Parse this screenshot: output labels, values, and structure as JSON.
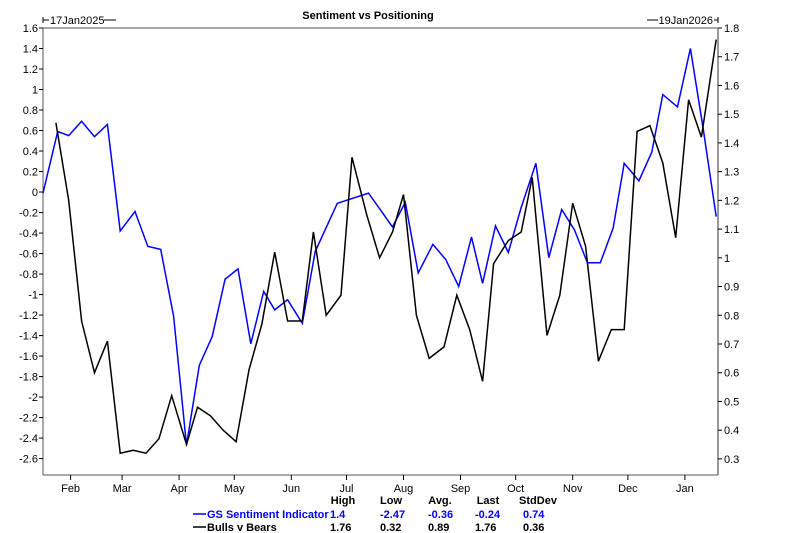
{
  "chart_data": {
    "type": "line",
    "title": "Sentiment vs Positioning",
    "start_label": "17Jan2025",
    "end_label": "19Jan2026",
    "x_unit": "days since 17Jan2025",
    "xlim": [
      0,
      367
    ],
    "month_ticks": [
      {
        "label": "Feb",
        "day": 15
      },
      {
        "label": "Mar",
        "day": 43
      },
      {
        "label": "Apr",
        "day": 74
      },
      {
        "label": "May",
        "day": 104
      },
      {
        "label": "Jun",
        "day": 135
      },
      {
        "label": "Jul",
        "day": 165
      },
      {
        "label": "Aug",
        "day": 196
      },
      {
        "label": "Sep",
        "day": 227
      },
      {
        "label": "Oct",
        "day": 257
      },
      {
        "label": "Nov",
        "day": 288
      },
      {
        "label": "Dec",
        "day": 318
      },
      {
        "label": "Jan",
        "day": 349
      }
    ],
    "left_axis": {
      "ylim": [
        -2.76,
        1.6
      ],
      "ticks": [
        1.6,
        1.4,
        1.2,
        1,
        0.8,
        0.6,
        0.4,
        0.2,
        0,
        -0.2,
        -0.4,
        -0.6,
        -0.8,
        -1,
        -1.2,
        -1.4,
        -1.6,
        -1.8,
        -2,
        -2.2,
        -2.4,
        -2.6
      ]
    },
    "right_axis": {
      "ylim": [
        0.244,
        1.8
      ],
      "ticks": [
        1.8,
        1.7,
        1.6,
        1.5,
        1.4,
        1.3,
        1.2,
        1.1,
        1,
        0.9,
        0.8,
        0.7,
        0.6,
        0.5,
        0.4,
        0.3
      ]
    },
    "series": [
      {
        "name": "GS Sentiment Indicator",
        "color": "#0000ff",
        "axis": "left",
        "x": [
          0,
          8,
          14,
          21,
          28,
          35,
          42,
          50,
          57,
          64,
          71,
          78,
          85,
          92,
          99,
          106,
          113,
          120,
          126,
          133,
          141,
          148,
          160,
          177,
          190,
          197,
          204,
          212,
          219,
          226,
          233,
          239,
          246,
          253,
          260,
          268,
          275,
          282,
          289,
          296,
          303,
          310,
          316,
          324,
          331,
          337,
          345,
          352,
          359,
          366
        ],
        "values": [
          -0.01,
          0.59,
          0.55,
          0.69,
          0.54,
          0.66,
          -0.38,
          -0.19,
          -0.53,
          -0.56,
          -1.21,
          -2.47,
          -1.69,
          -1.41,
          -0.85,
          -0.75,
          -1.48,
          -0.97,
          -1.15,
          -1.05,
          -1.28,
          -0.58,
          -0.11,
          -0.01,
          -0.34,
          -0.1,
          -0.79,
          -0.51,
          -0.66,
          -0.92,
          -0.44,
          -0.89,
          -0.33,
          -0.59,
          -0.15,
          0.28,
          -0.64,
          -0.17,
          -0.37,
          -0.69,
          -0.69,
          -0.35,
          0.28,
          0.11,
          0.39,
          0.95,
          0.83,
          1.4,
          0.61,
          -0.24
        ],
        "stats": {
          "high": "1.4",
          "low": "-2.47",
          "avg": "-0.36",
          "last": "-0.24",
          "stddev": "0.74"
        }
      },
      {
        "name": "Bulls v Bears",
        "color": "#000000",
        "axis": "right",
        "x": [
          7,
          14,
          21,
          28,
          35,
          42,
          49,
          56,
          63,
          70,
          78,
          84,
          91,
          98,
          105,
          112,
          119,
          126,
          133,
          141,
          147,
          154,
          162,
          168,
          176,
          183,
          190,
          196,
          203,
          210,
          218,
          225,
          232,
          239,
          245,
          253,
          260,
          266,
          274,
          281,
          288,
          295,
          302,
          309,
          316,
          323,
          330,
          337,
          344,
          351,
          358,
          366
        ],
        "values": [
          1.47,
          1.2,
          0.78,
          0.6,
          0.71,
          0.32,
          0.33,
          0.32,
          0.37,
          0.52,
          0.35,
          0.48,
          0.45,
          0.4,
          0.36,
          0.61,
          0.77,
          1.02,
          0.78,
          0.78,
          1.09,
          0.8,
          0.87,
          1.35,
          1.15,
          1.0,
          1.09,
          1.22,
          0.8,
          0.65,
          0.69,
          0.87,
          0.75,
          0.57,
          0.98,
          1.06,
          1.09,
          1.28,
          0.73,
          0.87,
          1.19,
          1.04,
          0.64,
          0.75,
          0.75,
          1.44,
          1.46,
          1.33,
          1.07,
          1.55,
          1.42,
          1.76
        ],
        "stats": {
          "high": "1.76",
          "low": "0.32",
          "avg": "0.89",
          "last": "1.76",
          "stddev": "0.36"
        }
      }
    ],
    "stats_headers": {
      "high": "High",
      "low": "Low",
      "avg": "Avg.",
      "last": "Last",
      "stddev": "StdDev"
    }
  }
}
